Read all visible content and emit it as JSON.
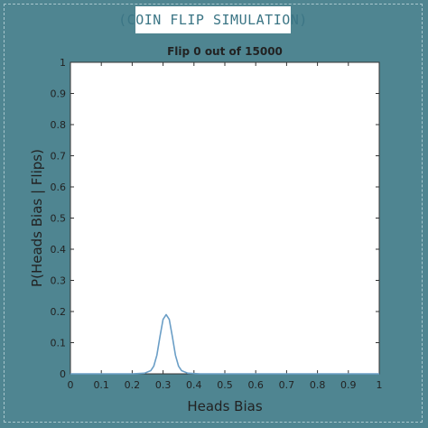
{
  "header": {
    "label": "(COIN FLIP SIMULATION)"
  },
  "chart_data": {
    "type": "line",
    "title": "Flip 0 out of 15000",
    "xlabel": "Heads Bias",
    "ylabel": "P(Heads Bias | Flips)",
    "xlim": [
      0,
      1
    ],
    "ylim": [
      0,
      1
    ],
    "xticks": [
      "0",
      "0.1",
      "0.2",
      "0.3",
      "0.4",
      "0.5",
      "0.6",
      "0.7",
      "0.8",
      "0.9",
      "1"
    ],
    "yticks": [
      "0",
      "0.1",
      "0.2",
      "0.3",
      "0.4",
      "0.5",
      "0.6",
      "0.7",
      "0.8",
      "0.9",
      "1"
    ],
    "grid": false,
    "series": [
      {
        "color": "#6a9ec6",
        "x": [
          0,
          0.2,
          0.24,
          0.26,
          0.27,
          0.28,
          0.29,
          0.3,
          0.31,
          0.32,
          0.33,
          0.34,
          0.35,
          0.36,
          0.38,
          0.42,
          0.6,
          1.0
        ],
        "y": [
          0,
          0,
          0.002,
          0.01,
          0.025,
          0.06,
          0.12,
          0.175,
          0.19,
          0.175,
          0.12,
          0.06,
          0.025,
          0.01,
          0.002,
          0,
          0,
          0
        ]
      }
    ]
  }
}
